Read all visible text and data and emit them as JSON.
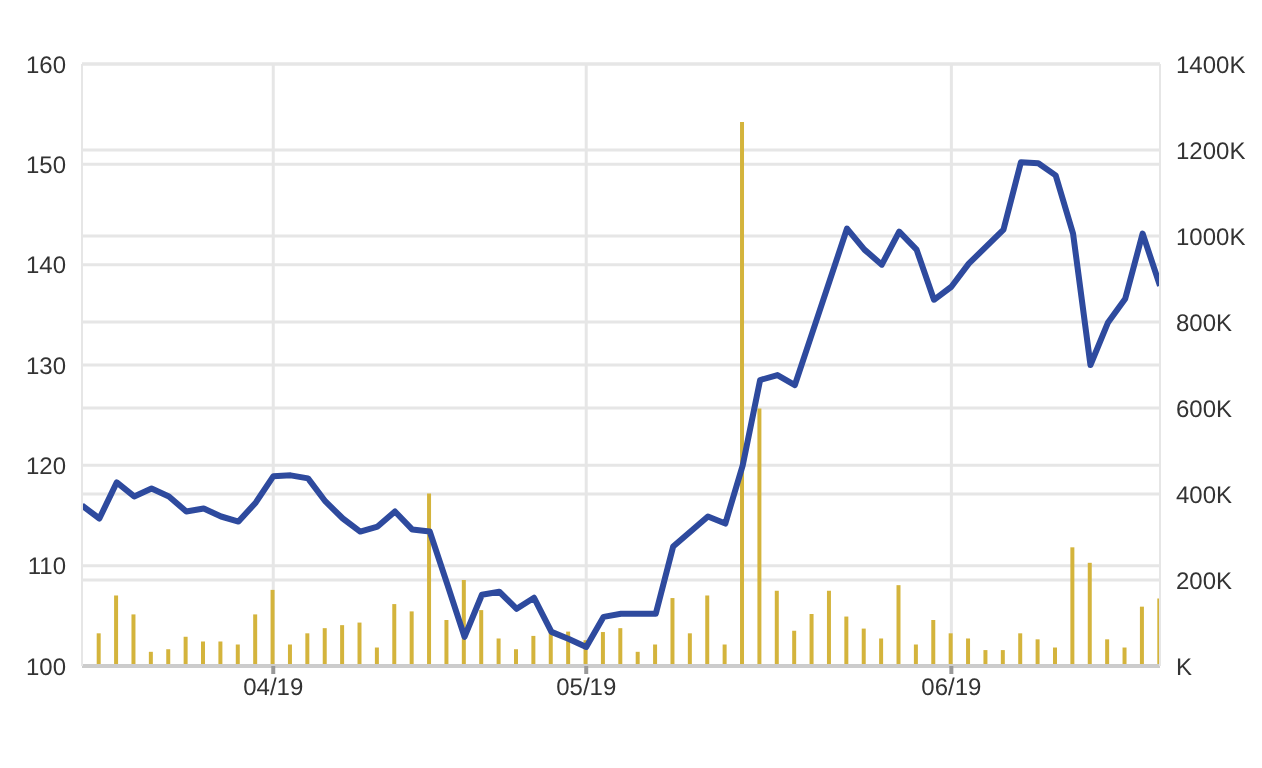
{
  "chart_data": {
    "type": "line",
    "categories": [
      null,
      null,
      null,
      null,
      null,
      null,
      null,
      null,
      null,
      null,
      null,
      "04/19",
      null,
      null,
      null,
      null,
      null,
      null,
      null,
      null,
      null,
      null,
      null,
      null,
      null,
      null,
      null,
      null,
      null,
      "05/19",
      null,
      null,
      null,
      null,
      null,
      null,
      null,
      null,
      null,
      null,
      null,
      null,
      null,
      null,
      null,
      null,
      null,
      null,
      null,
      null,
      "06/19",
      null,
      null,
      null,
      null,
      null,
      null,
      null,
      null,
      null,
      null,
      null,
      null
    ],
    "series": [
      {
        "type": "bar",
        "axis": "y2",
        "color": "#d4b43c",
        "values": [
          null,
          76,
          164,
          120,
          33,
          39,
          68,
          57,
          57,
          50,
          120,
          177,
          50,
          76,
          88,
          95,
          101,
          43,
          144,
          127,
          401,
          107,
          200,
          130,
          64,
          39,
          70,
          85,
          80,
          60,
          79,
          88,
          33,
          50,
          158,
          76,
          164,
          50,
          1265,
          599,
          175,
          82,
          121,
          175,
          115,
          87,
          64,
          188,
          50,
          107,
          76,
          64,
          37,
          37,
          76,
          62,
          43,
          276,
          240,
          62,
          43,
          138,
          157
        ]
      },
      {
        "color": "#2e4a9e",
        "values": [
          116.0,
          114.7,
          118.3,
          116.9,
          117.7,
          116.9,
          115.4,
          115.7,
          114.9,
          114.4,
          116.3,
          118.9,
          119.0,
          118.7,
          116.4,
          114.7,
          113.4,
          113.9,
          115.4,
          113.6,
          113.4,
          108.2,
          102.9,
          107.1,
          107.4,
          105.7,
          106.8,
          103.4,
          102.7,
          101.9,
          104.9,
          105.2,
          105.2,
          105.2,
          111.9,
          113.4,
          114.9,
          114.2,
          120.0,
          128.5,
          129.0,
          128.0,
          133.2,
          138.4,
          143.6,
          141.5,
          140.0,
          143.3,
          141.5,
          136.5,
          137.8,
          140.1,
          141.8,
          143.5,
          150.2,
          150.1,
          148.9,
          143.1,
          130.0,
          134.2,
          136.6,
          143.1,
          137.9
        ]
      }
    ],
    "ylim": [
      100,
      160
    ],
    "yticks": [
      100,
      110,
      120,
      130,
      140,
      150,
      160
    ],
    "y2lim": [
      0,
      1400
    ],
    "y2ticks": [
      {
        "value": 0,
        "label": "K"
      },
      {
        "value": 200,
        "label": "200K"
      },
      {
        "value": 400,
        "label": "400K"
      },
      {
        "value": 600,
        "label": "600K"
      },
      {
        "value": 800,
        "label": "800K"
      },
      {
        "value": 1000,
        "label": "1000K"
      },
      {
        "value": 1200,
        "label": "1200K"
      },
      {
        "value": 1400,
        "label": "1400K"
      }
    ],
    "grid": true,
    "marker": "none",
    "line_style": "solid"
  }
}
